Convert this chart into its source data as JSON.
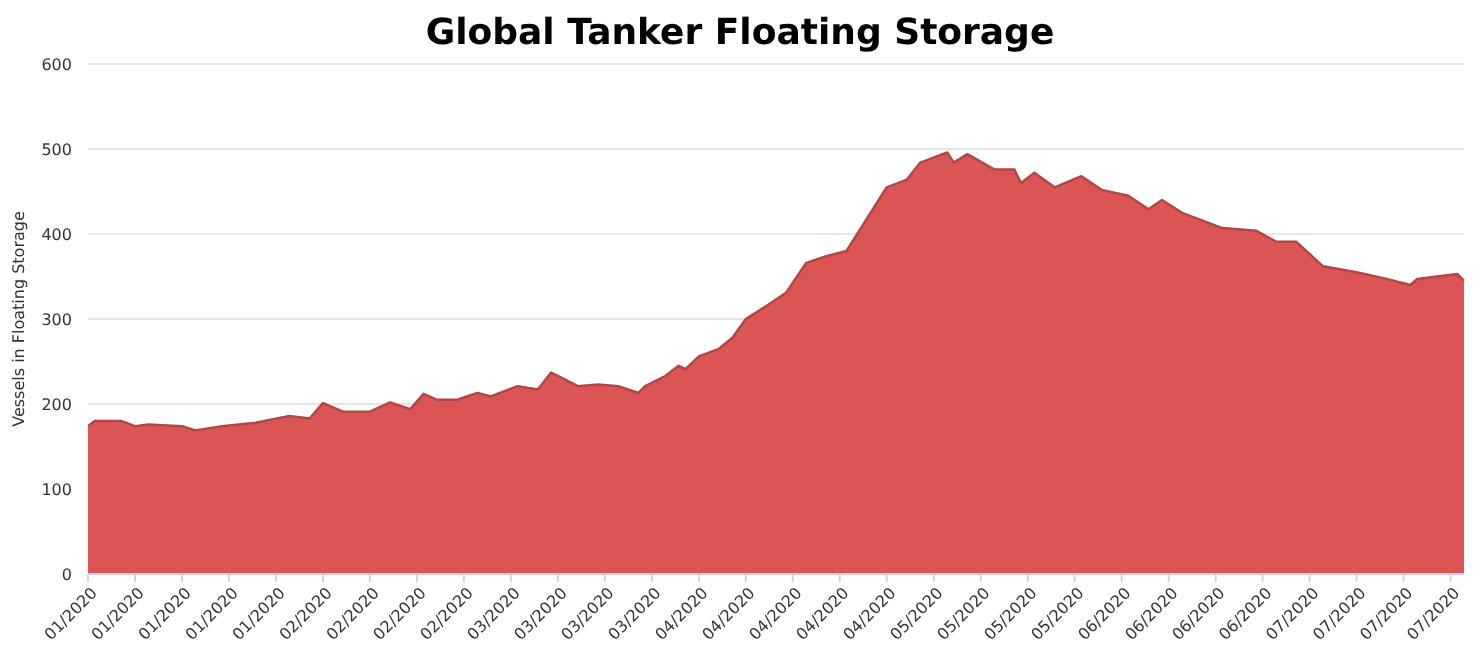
{
  "chart_data": {
    "type": "area",
    "title": "Global Tanker Floating Storage",
    "ylabel": "Vessels in Floating Storage",
    "x": [
      "2020-01-01",
      "2020-01-02",
      "2020-01-06",
      "2020-01-08",
      "2020-01-10",
      "2020-01-15",
      "2020-01-17",
      "2020-01-21",
      "2020-01-26",
      "2020-01-31",
      "2020-02-03",
      "2020-02-05",
      "2020-02-08",
      "2020-02-12",
      "2020-02-15",
      "2020-02-18",
      "2020-02-20",
      "2020-02-22",
      "2020-02-25",
      "2020-02-28",
      "2020-03-01",
      "2020-03-05",
      "2020-03-08",
      "2020-03-10",
      "2020-03-14",
      "2020-03-17",
      "2020-03-20",
      "2020-03-23",
      "2020-03-24",
      "2020-03-27",
      "2020-03-29",
      "2020-03-30",
      "2020-04-01",
      "2020-04-04",
      "2020-04-06",
      "2020-04-08",
      "2020-04-11",
      "2020-04-14",
      "2020-04-17",
      "2020-04-20",
      "2020-04-23",
      "2020-04-25",
      "2020-04-29",
      "2020-05-02",
      "2020-05-04",
      "2020-05-08",
      "2020-05-09",
      "2020-05-11",
      "2020-05-15",
      "2020-05-18",
      "2020-05-19",
      "2020-05-21",
      "2020-05-24",
      "2020-05-28",
      "2020-05-31",
      "2020-06-04",
      "2020-06-07",
      "2020-06-09",
      "2020-06-12",
      "2020-06-18",
      "2020-06-23",
      "2020-06-26",
      "2020-06-29",
      "2020-07-03",
      "2020-07-08",
      "2020-07-12",
      "2020-07-16",
      "2020-07-17",
      "2020-07-23",
      "2020-07-24"
    ],
    "series": [
      {
        "color": "#dc5555",
        "values": [
          174,
          180,
          180,
          174,
          176,
          174,
          169,
          174,
          178,
          186,
          183,
          201,
          191,
          191,
          202,
          194,
          212,
          205,
          205,
          213,
          209,
          221,
          217,
          237,
          221,
          223,
          221,
          213,
          221,
          233,
          245,
          241,
          256,
          265,
          278,
          300,
          315,
          331,
          366,
          374,
          380,
          405,
          455,
          464,
          484,
          496,
          484,
          494,
          476,
          476,
          460,
          472,
          455,
          468,
          452,
          445,
          429,
          440,
          425,
          407,
          404,
          391,
          391,
          362,
          355,
          348,
          340,
          347,
          353,
          345
        ]
      }
    ],
    "xlim": [
      "2020-01-01",
      "2020-07-24"
    ],
    "xticks": [
      {
        "value": "2020-01-01",
        "label": "01/2020"
      },
      {
        "value": "2020-01-08",
        "label": "01/2020"
      },
      {
        "value": "2020-01-15",
        "label": "01/2020"
      },
      {
        "value": "2020-01-22",
        "label": "01/2020"
      },
      {
        "value": "2020-01-29",
        "label": "01/2020"
      },
      {
        "value": "2020-02-05",
        "label": "02/2020"
      },
      {
        "value": "2020-02-12",
        "label": "02/2020"
      },
      {
        "value": "2020-02-19",
        "label": "02/2020"
      },
      {
        "value": "2020-02-26",
        "label": "02/2020"
      },
      {
        "value": "2020-03-04",
        "label": "03/2020"
      },
      {
        "value": "2020-03-11",
        "label": "03/2020"
      },
      {
        "value": "2020-03-18",
        "label": "03/2020"
      },
      {
        "value": "2020-03-25",
        "label": "03/2020"
      },
      {
        "value": "2020-04-01",
        "label": "04/2020"
      },
      {
        "value": "2020-04-08",
        "label": "04/2020"
      },
      {
        "value": "2020-04-15",
        "label": "04/2020"
      },
      {
        "value": "2020-04-22",
        "label": "04/2020"
      },
      {
        "value": "2020-04-29",
        "label": "04/2020"
      },
      {
        "value": "2020-05-06",
        "label": "05/2020"
      },
      {
        "value": "2020-05-13",
        "label": "05/2020"
      },
      {
        "value": "2020-05-20",
        "label": "05/2020"
      },
      {
        "value": "2020-05-27",
        "label": "05/2020"
      },
      {
        "value": "2020-06-03",
        "label": "06/2020"
      },
      {
        "value": "2020-06-10",
        "label": "06/2020"
      },
      {
        "value": "2020-06-17",
        "label": "06/2020"
      },
      {
        "value": "2020-06-24",
        "label": "06/2020"
      },
      {
        "value": "2020-07-01",
        "label": "07/2020"
      },
      {
        "value": "2020-07-08",
        "label": "07/2020"
      },
      {
        "value": "2020-07-15",
        "label": "07/2020"
      },
      {
        "value": "2020-07-22",
        "label": "07/2020"
      }
    ],
    "ylim": [
      0,
      600
    ],
    "yticks": [
      0,
      100,
      200,
      300,
      400,
      500,
      600
    ],
    "grid": "y"
  }
}
